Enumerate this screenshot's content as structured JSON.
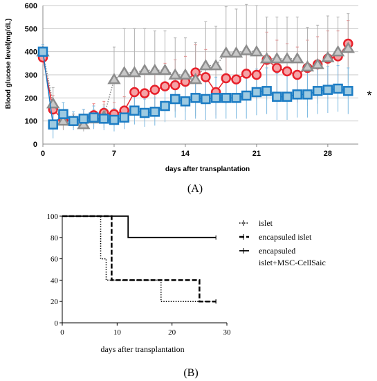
{
  "panel_a": {
    "ylabel": "Blood glucose level(mg/dL)",
    "xlabel": "days after transplantation",
    "caption": "(A)",
    "significance_mark": "*"
  },
  "panel_b": {
    "xlabel": "days after transplantation",
    "caption": "(B)"
  },
  "colors": {
    "red_series": "#e8202a",
    "red_fill": "#f4a3a6",
    "gray_series": "#8c8c8c",
    "gray_fill": "#c8c8c8",
    "blue_series": "#1b7cc4",
    "blue_fill": "#9ecae1",
    "grid": "#c8c8c8"
  },
  "chart_data": [
    {
      "type": "line",
      "xlabel": "days after transplantation",
      "ylabel": "Blood glucose level(mg/dL)",
      "xlim": [
        0,
        31
      ],
      "ylim": [
        0,
        600
      ],
      "xticks": [
        0,
        7,
        14,
        21,
        28
      ],
      "yticks": [
        0,
        100,
        200,
        300,
        400,
        500,
        600
      ],
      "grid": "horizontal",
      "series": [
        {
          "color": "red",
          "marker": "circle",
          "x": [
            0,
            1,
            2,
            3,
            4,
            5,
            6,
            7,
            8,
            9,
            10,
            11,
            12,
            13,
            14,
            15,
            16,
            17,
            18,
            19,
            20,
            21,
            22,
            23,
            24,
            25,
            26,
            27,
            28,
            29,
            30
          ],
          "y": [
            375,
            150,
            105,
            100,
            110,
            125,
            135,
            130,
            145,
            225,
            220,
            235,
            250,
            255,
            270,
            310,
            290,
            225,
            285,
            280,
            305,
            300,
            365,
            330,
            315,
            300,
            330,
            345,
            370,
            380,
            435
          ],
          "err": [
            30,
            60,
            40,
            30,
            40,
            50,
            50,
            50,
            60,
            90,
            90,
            100,
            100,
            110,
            110,
            120,
            120,
            100,
            110,
            110,
            110,
            110,
            120,
            120,
            120,
            120,
            120,
            120,
            120,
            110,
            100
          ]
        },
        {
          "color": "gray",
          "marker": "triangle",
          "x": [
            0,
            1,
            2,
            3,
            4,
            5,
            6,
            7,
            8,
            9,
            10,
            11,
            12,
            13,
            14,
            15,
            16,
            17,
            18,
            19,
            20,
            21,
            22,
            23,
            24,
            25,
            26,
            27,
            28,
            29,
            30
          ],
          "y": [
            400,
            175,
            100,
            100,
            85,
            110,
            120,
            280,
            310,
            310,
            320,
            320,
            320,
            300,
            300,
            280,
            340,
            340,
            395,
            395,
            405,
            400,
            370,
            370,
            370,
            370,
            335,
            345,
            375,
            400,
            415
          ],
          "err": [
            30,
            70,
            40,
            30,
            30,
            40,
            50,
            140,
            190,
            190,
            180,
            170,
            170,
            160,
            160,
            160,
            190,
            170,
            200,
            190,
            200,
            200,
            180,
            180,
            180,
            180,
            170,
            170,
            180,
            150,
            150
          ]
        },
        {
          "color": "blue",
          "marker": "square",
          "x": [
            0,
            1,
            2,
            3,
            4,
            5,
            6,
            7,
            8,
            9,
            10,
            11,
            12,
            13,
            14,
            15,
            16,
            17,
            18,
            19,
            20,
            21,
            22,
            23,
            24,
            25,
            26,
            27,
            28,
            29,
            30
          ],
          "y": [
            400,
            85,
            130,
            100,
            110,
            115,
            110,
            105,
            115,
            145,
            135,
            140,
            165,
            195,
            185,
            200,
            195,
            200,
            200,
            200,
            210,
            225,
            230,
            205,
            205,
            215,
            215,
            230,
            235,
            240,
            230
          ],
          "err": [
            30,
            60,
            50,
            40,
            40,
            50,
            50,
            50,
            50,
            60,
            60,
            60,
            70,
            80,
            80,
            90,
            90,
            90,
            90,
            90,
            100,
            100,
            100,
            100,
            100,
            100,
            100,
            100,
            100,
            100,
            100
          ]
        }
      ]
    },
    {
      "type": "line",
      "step": true,
      "xlabel": "days after transplantation",
      "xlim": [
        0,
        30
      ],
      "ylim": [
        0,
        100
      ],
      "xticks": [
        0,
        10,
        20,
        30
      ],
      "yticks": [
        0,
        20,
        40,
        60,
        80,
        100
      ],
      "grid": false,
      "legend": "right",
      "series": [
        {
          "name": "islet",
          "style": "dotted",
          "x": [
            0,
            7,
            7,
            8,
            8,
            18,
            18,
            28
          ],
          "y": [
            100,
            100,
            60,
            60,
            40,
            40,
            20,
            20
          ]
        },
        {
          "name": "encapsuled islet",
          "style": "dashed",
          "x": [
            0,
            9,
            9,
            25,
            25,
            28
          ],
          "y": [
            100,
            100,
            40,
            40,
            20,
            20
          ]
        },
        {
          "name": "encapsuled\nislet+MSC-CellSaic",
          "name_lines": [
            "encapsuled",
            "islet+MSC-CellSaic"
          ],
          "style": "solid",
          "x": [
            0,
            12,
            12,
            28
          ],
          "y": [
            100,
            100,
            80,
            80
          ]
        }
      ]
    }
  ]
}
